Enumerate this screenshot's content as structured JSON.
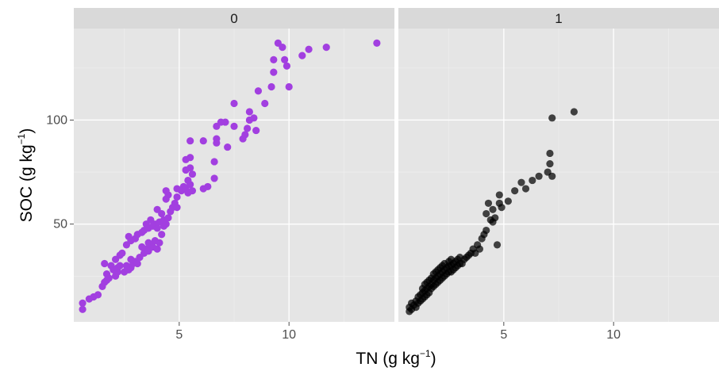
{
  "chart_data": {
    "type": "scatter",
    "facet_variable_labels": [
      "0",
      "1"
    ],
    "xlabel": {
      "main": "TN (g kg",
      "sup": "−1",
      "end": ")"
    },
    "ylabel": {
      "main": "SOC (g kg",
      "sup": "−1",
      "end": ")"
    },
    "xlim": [
      0.2,
      14.8
    ],
    "ylim": [
      3,
      144
    ],
    "x_ticks": [
      5,
      10
    ],
    "y_ticks": [
      50,
      100
    ],
    "grid": true,
    "panel_background": "#e5e5e5",
    "strip_background": "#d9d9d9",
    "panels": [
      {
        "label": "0",
        "color": "#a23fe0",
        "point_alpha": 1.0,
        "points": [
          [
            0.6,
            9
          ],
          [
            0.6,
            12
          ],
          [
            0.9,
            14
          ],
          [
            1.1,
            15
          ],
          [
            1.3,
            16
          ],
          [
            1.5,
            20
          ],
          [
            1.6,
            22
          ],
          [
            1.7,
            23
          ],
          [
            1.8,
            24
          ],
          [
            1.7,
            26
          ],
          [
            1.6,
            31
          ],
          [
            1.9,
            30
          ],
          [
            2.1,
            25
          ],
          [
            2.2,
            27
          ],
          [
            2.0,
            28
          ],
          [
            2.2,
            29
          ],
          [
            2.3,
            30
          ],
          [
            2.1,
            33
          ],
          [
            2.3,
            35
          ],
          [
            2.4,
            36
          ],
          [
            2.5,
            27
          ],
          [
            2.7,
            28
          ],
          [
            2.8,
            29
          ],
          [
            2.6,
            30
          ],
          [
            2.9,
            31
          ],
          [
            2.8,
            33
          ],
          [
            3.0,
            32
          ],
          [
            3.1,
            31
          ],
          [
            3.2,
            34
          ],
          [
            2.6,
            40
          ],
          [
            2.8,
            42
          ],
          [
            3.0,
            43
          ],
          [
            2.7,
            44
          ],
          [
            3.1,
            45
          ],
          [
            3.3,
            46
          ],
          [
            3.4,
            36
          ],
          [
            3.5,
            38
          ],
          [
            3.6,
            37
          ],
          [
            3.3,
            39
          ],
          [
            3.7,
            40
          ],
          [
            3.6,
            41
          ],
          [
            3.8,
            39
          ],
          [
            3.9,
            42
          ],
          [
            4.0,
            38
          ],
          [
            4.1,
            41
          ],
          [
            3.4,
            47
          ],
          [
            3.6,
            48
          ],
          [
            3.5,
            50
          ],
          [
            3.8,
            49
          ],
          [
            3.9,
            50
          ],
          [
            4.0,
            48
          ],
          [
            3.7,
            52
          ],
          [
            4.1,
            51
          ],
          [
            4.2,
            45
          ],
          [
            4.3,
            49
          ],
          [
            4.4,
            50
          ],
          [
            4.3,
            52
          ],
          [
            4.5,
            53
          ],
          [
            4.2,
            55
          ],
          [
            4.6,
            56
          ],
          [
            4.0,
            57
          ],
          [
            4.4,
            62
          ],
          [
            4.5,
            64
          ],
          [
            4.4,
            66
          ],
          [
            4.7,
            58
          ],
          [
            4.8,
            60
          ],
          [
            4.9,
            58
          ],
          [
            4.9,
            63
          ],
          [
            4.9,
            67
          ],
          [
            5.1,
            66
          ],
          [
            5.2,
            68
          ],
          [
            5.3,
            67
          ],
          [
            5.4,
            65
          ],
          [
            5.6,
            66
          ],
          [
            5.5,
            69
          ],
          [
            5.4,
            71
          ],
          [
            5.6,
            74
          ],
          [
            5.3,
            76
          ],
          [
            5.5,
            77
          ],
          [
            5.3,
            81
          ],
          [
            5.5,
            82
          ],
          [
            5.5,
            90
          ],
          [
            6.1,
            67
          ],
          [
            6.3,
            68
          ],
          [
            6.6,
            72
          ],
          [
            6.6,
            80
          ],
          [
            6.7,
            89
          ],
          [
            6.1,
            90
          ],
          [
            6.7,
            91
          ],
          [
            6.7,
            97
          ],
          [
            6.9,
            99
          ],
          [
            7.1,
            99
          ],
          [
            7.2,
            87
          ],
          [
            7.5,
            97
          ],
          [
            7.5,
            108
          ],
          [
            7.9,
            91
          ],
          [
            8.0,
            93
          ],
          [
            8.1,
            96
          ],
          [
            8.2,
            100
          ],
          [
            8.2,
            104
          ],
          [
            8.4,
            101
          ],
          [
            8.5,
            95
          ],
          [
            8.6,
            114
          ],
          [
            8.9,
            108
          ],
          [
            9.2,
            116
          ],
          [
            9.3,
            123
          ],
          [
            9.3,
            129
          ],
          [
            9.5,
            137
          ],
          [
            9.7,
            135
          ],
          [
            9.8,
            129
          ],
          [
            10.0,
            116
          ],
          [
            9.9,
            126
          ],
          [
            10.6,
            131
          ],
          [
            10.9,
            134
          ],
          [
            11.7,
            135
          ],
          [
            14.0,
            137
          ]
        ]
      },
      {
        "label": "1",
        "color": "#000000",
        "point_alpha": 0.72,
        "points": [
          [
            0.7,
            8
          ],
          [
            0.7,
            10
          ],
          [
            0.8,
            9
          ],
          [
            0.8,
            12
          ],
          [
            0.9,
            11
          ],
          [
            1.0,
            10
          ],
          [
            1.0,
            13
          ],
          [
            1.1,
            12
          ],
          [
            1.1,
            15
          ],
          [
            1.2,
            13
          ],
          [
            1.2,
            16
          ],
          [
            1.3,
            14
          ],
          [
            1.3,
            17
          ],
          [
            1.3,
            19
          ],
          [
            1.4,
            15
          ],
          [
            1.4,
            18
          ],
          [
            1.4,
            21
          ],
          [
            1.5,
            16
          ],
          [
            1.5,
            19
          ],
          [
            1.5,
            22
          ],
          [
            1.6,
            17
          ],
          [
            1.6,
            20
          ],
          [
            1.6,
            23
          ],
          [
            1.7,
            19
          ],
          [
            1.7,
            21
          ],
          [
            1.7,
            24
          ],
          [
            1.8,
            20
          ],
          [
            1.8,
            23
          ],
          [
            1.8,
            26
          ],
          [
            1.9,
            21
          ],
          [
            1.9,
            24
          ],
          [
            1.9,
            27
          ],
          [
            2.0,
            22
          ],
          [
            2.0,
            25
          ],
          [
            2.0,
            28
          ],
          [
            2.1,
            23
          ],
          [
            2.1,
            26
          ],
          [
            2.1,
            29
          ],
          [
            2.2,
            24
          ],
          [
            2.2,
            27
          ],
          [
            2.2,
            30
          ],
          [
            2.3,
            25
          ],
          [
            2.3,
            28
          ],
          [
            2.3,
            31
          ],
          [
            2.4,
            26
          ],
          [
            2.4,
            29
          ],
          [
            2.5,
            27
          ],
          [
            2.5,
            30
          ],
          [
            2.5,
            32
          ],
          [
            2.6,
            27
          ],
          [
            2.6,
            30
          ],
          [
            2.6,
            33
          ],
          [
            2.7,
            28
          ],
          [
            2.7,
            31
          ],
          [
            2.8,
            29
          ],
          [
            2.8,
            32
          ],
          [
            2.9,
            30
          ],
          [
            2.9,
            33
          ],
          [
            3.0,
            31
          ],
          [
            3.0,
            34
          ],
          [
            3.1,
            31
          ],
          [
            3.2,
            33
          ],
          [
            3.3,
            34
          ],
          [
            3.4,
            35
          ],
          [
            3.5,
            36
          ],
          [
            3.6,
            38
          ],
          [
            3.7,
            36
          ],
          [
            3.8,
            40
          ],
          [
            3.9,
            38
          ],
          [
            4.0,
            43
          ],
          [
            4.1,
            45
          ],
          [
            4.2,
            47
          ],
          [
            4.2,
            55
          ],
          [
            4.3,
            60
          ],
          [
            4.4,
            52
          ],
          [
            4.5,
            51
          ],
          [
            4.5,
            57
          ],
          [
            4.6,
            53
          ],
          [
            4.7,
            40
          ],
          [
            4.8,
            60
          ],
          [
            4.8,
            64
          ],
          [
            4.9,
            58
          ],
          [
            5.2,
            61
          ],
          [
            5.5,
            66
          ],
          [
            5.8,
            70
          ],
          [
            6.0,
            67
          ],
          [
            6.3,
            71
          ],
          [
            6.6,
            73
          ],
          [
            7.0,
            75
          ],
          [
            7.1,
            79
          ],
          [
            7.1,
            84
          ],
          [
            7.2,
            73
          ],
          [
            7.2,
            101
          ],
          [
            8.2,
            104
          ]
        ]
      }
    ]
  }
}
